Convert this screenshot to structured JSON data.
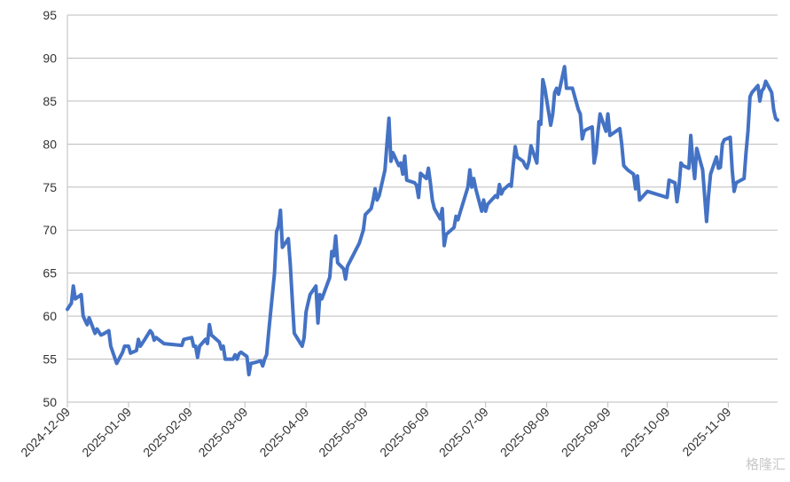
{
  "chart_data": {
    "type": "line",
    "x": [
      "2024-12-09",
      "2024-12-11",
      "2024-12-12",
      "2024-12-13",
      "2024-12-16",
      "2024-12-17",
      "2024-12-18",
      "2024-12-19",
      "2024-12-20",
      "2024-12-23",
      "2024-12-24",
      "2024-12-26",
      "2024-12-27",
      "2024-12-30",
      "2024-12-31",
      "2025-01-03",
      "2025-01-06",
      "2025-01-07",
      "2025-01-09",
      "2025-01-10",
      "2025-01-13",
      "2025-01-14",
      "2025-01-15",
      "2025-01-17",
      "2025-01-20",
      "2025-01-21",
      "2025-01-22",
      "2025-01-23",
      "2025-01-27",
      "2025-02-05",
      "2025-02-06",
      "2025-02-10",
      "2025-02-11",
      "2025-02-12",
      "2025-02-13",
      "2025-02-14",
      "2025-02-17",
      "2025-02-18",
      "2025-02-19",
      "2025-02-20",
      "2025-02-24",
      "2025-02-25",
      "2025-02-26",
      "2025-02-27",
      "2025-03-03",
      "2025-03-04",
      "2025-03-05",
      "2025-03-06",
      "2025-03-07",
      "2025-03-10",
      "2025-03-11",
      "2025-03-12",
      "2025-03-14",
      "2025-03-17",
      "2025-03-18",
      "2025-03-19",
      "2025-03-20",
      "2025-03-21",
      "2025-03-24",
      "2025-03-25",
      "2025-03-26",
      "2025-03-27",
      "2025-03-28",
      "2025-03-31",
      "2025-04-01",
      "2025-04-02",
      "2025-04-03",
      "2025-04-07",
      "2025-04-08",
      "2025-04-09",
      "2025-04-10",
      "2025-04-11",
      "2025-04-14",
      "2025-04-15",
      "2025-04-16",
      "2025-04-17",
      "2025-04-21",
      "2025-04-22",
      "2025-04-23",
      "2025-04-24",
      "2025-04-25",
      "2025-04-28",
      "2025-04-29",
      "2025-04-30",
      "2025-05-06",
      "2025-05-08",
      "2025-05-09",
      "2025-05-12",
      "2025-05-13",
      "2025-05-14",
      "2025-05-15",
      "2025-05-16",
      "2025-05-19",
      "2025-05-20",
      "2025-05-21",
      "2025-05-22",
      "2025-05-23",
      "2025-05-26",
      "2025-05-27",
      "2025-05-28",
      "2025-05-29",
      "2025-05-30",
      "2025-06-03",
      "2025-06-04",
      "2025-06-05",
      "2025-06-06",
      "2025-06-09",
      "2025-06-10",
      "2025-06-11",
      "2025-06-12",
      "2025-06-13",
      "2025-06-16",
      "2025-06-17",
      "2025-06-18",
      "2025-06-19",
      "2025-06-23",
      "2025-06-24",
      "2025-06-25",
      "2025-06-26",
      "2025-06-30",
      "2025-07-01",
      "2025-07-02",
      "2025-07-03",
      "2025-07-04",
      "2025-07-07",
      "2025-07-08",
      "2025-07-09",
      "2025-07-10",
      "2025-07-14",
      "2025-07-15",
      "2025-07-16",
      "2025-07-17",
      "2025-07-18",
      "2025-07-21",
      "2025-07-22",
      "2025-07-23",
      "2025-07-24",
      "2025-07-25",
      "2025-07-28",
      "2025-07-29",
      "2025-07-30",
      "2025-07-31",
      "2025-08-01",
      "2025-08-04",
      "2025-08-05",
      "2025-08-06",
      "2025-08-07",
      "2025-08-08",
      "2025-08-11",
      "2025-08-12",
      "2025-08-13",
      "2025-08-14",
      "2025-08-15",
      "2025-08-18",
      "2025-08-19",
      "2025-08-22",
      "2025-08-25",
      "2025-08-26",
      "2025-08-27",
      "2025-08-28",
      "2025-08-29",
      "2025-09-01",
      "2025-09-02",
      "2025-09-03",
      "2025-09-04",
      "2025-09-05",
      "2025-09-08",
      "2025-09-09",
      "2025-09-10",
      "2025-09-15",
      "2025-09-16",
      "2025-09-17",
      "2025-09-19",
      "2025-09-22",
      "2025-09-23",
      "2025-09-24",
      "2025-09-25",
      "2025-09-29",
      "2025-10-09",
      "2025-10-10",
      "2025-10-13",
      "2025-10-14",
      "2025-10-15",
      "2025-10-16",
      "2025-10-17",
      "2025-10-20",
      "2025-10-21",
      "2025-10-22",
      "2025-10-23",
      "2025-10-24",
      "2025-10-27",
      "2025-10-28",
      "2025-10-29",
      "2025-10-30",
      "2025-10-31",
      "2025-11-03",
      "2025-11-04",
      "2025-11-05",
      "2025-11-06",
      "2025-11-07",
      "2025-11-10",
      "2025-11-11",
      "2025-11-12",
      "2025-11-13",
      "2025-11-17",
      "2025-11-18",
      "2025-11-19",
      "2025-11-20",
      "2025-11-21",
      "2025-11-24",
      "2025-11-25",
      "2025-11-26",
      "2025-11-27",
      "2025-11-28",
      "2025-12-01",
      "2025-12-02",
      "2025-12-03",
      "2025-12-04"
    ],
    "values": [
      60.8,
      61.5,
      63.5,
      62,
      62.5,
      60,
      59.5,
      59,
      59.8,
      58,
      58.5,
      57.8,
      57.9,
      58.3,
      56.5,
      54.5,
      55.8,
      56.5,
      56.5,
      55.7,
      56,
      57.3,
      56.5,
      57.2,
      58.3,
      58,
      57.2,
      57.5,
      56.8,
      56.6,
      57.3,
      57.5,
      56.5,
      56.5,
      55.2,
      56.5,
      57.3,
      56.8,
      59,
      57.8,
      57,
      56.2,
      56.5,
      55,
      55,
      55.5,
      55,
      55.6,
      55.8,
      55.3,
      53.2,
      54.5,
      54.6,
      54.8,
      54.2,
      55,
      55.5,
      58,
      65,
      69.8,
      70.5,
      72.3,
      68,
      69,
      66,
      62,
      58,
      56.5,
      57.5,
      60.5,
      61.5,
      62.5,
      63.5,
      59.2,
      62.5,
      62,
      64.5,
      67.5,
      67,
      69.3,
      66.2,
      65.5,
      64.3,
      65.8,
      68.5,
      70,
      71.8,
      72.5,
      73.5,
      74.8,
      73.5,
      74,
      77,
      80,
      83,
      78,
      79,
      77.5,
      77.8,
      76.5,
      78.6,
      75.8,
      75.5,
      75.2,
      73.8,
      76.6,
      76,
      77.2,
      75.5,
      73.5,
      72.5,
      71.3,
      72.5,
      68.2,
      69.5,
      70.3,
      71.6,
      71.2,
      72,
      75,
      77,
      75,
      76,
      74.8,
      72.2,
      73.5,
      72.2,
      73,
      74,
      73.8,
      75.3,
      74.2,
      74.7,
      75.3,
      75.1,
      77.5,
      79.7,
      78.5,
      78,
      77.5,
      77.2,
      78,
      79.8,
      77.8,
      82.6,
      82.3,
      87.5,
      86.5,
      82.2,
      83.5,
      86,
      86.5,
      85.8,
      89,
      86.5,
      86.5,
      84,
      83.5,
      80.6,
      81.5,
      81.7,
      82,
      77.8,
      79,
      81.5,
      83.5,
      81.5,
      83.5,
      81,
      81.8,
      80,
      77.5,
      77,
      76.5,
      74.8,
      76.3,
      73.5,
      74.5,
      73.8,
      75.8,
      75.5,
      73.3,
      75,
      77.8,
      77.5,
      77.2,
      81,
      78,
      76,
      79.5,
      77,
      74,
      71,
      74,
      76.5,
      78.5,
      77.2,
      77.3,
      80,
      80.5,
      80.8,
      77,
      74.5,
      75.5,
      76,
      79,
      81.5,
      85.5,
      86,
      86.8,
      85,
      86.2,
      86.5,
      87.3,
      86,
      84,
      83,
      82.8
    ],
    "color": "#4472c4",
    "xlim": [
      "2024-12-09",
      "2025-12-04"
    ],
    "xticks": [
      "2024-12-09",
      "2025-01-09",
      "2025-02-09",
      "2025-03-09",
      "2025-04-09",
      "2025-05-09",
      "2025-06-09",
      "2025-07-09",
      "2025-08-09",
      "2025-09-09",
      "2025-10-09",
      "2025-11-09"
    ],
    "ylim": [
      50,
      95
    ],
    "yticks": [
      50,
      55,
      60,
      65,
      70,
      75,
      80,
      85,
      90,
      95
    ],
    "grid": true,
    "watermark": "格隆汇"
  }
}
